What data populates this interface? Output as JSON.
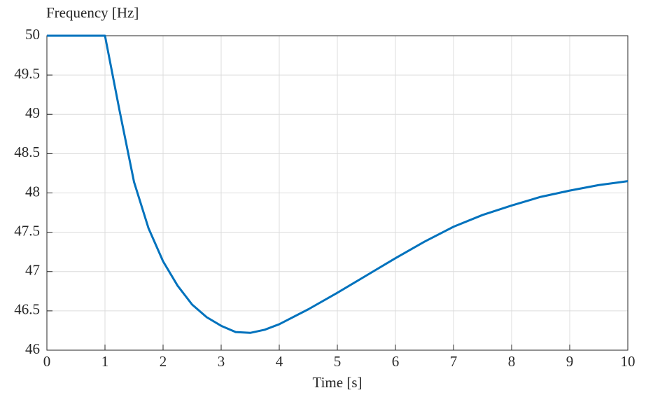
{
  "chart_data": {
    "type": "line",
    "ylabel": "Frequency [Hz]",
    "xlabel": "Time [s]",
    "x": [
      0,
      0.5,
      1,
      1.25,
      1.5,
      1.75,
      2,
      2.25,
      2.5,
      2.75,
      3,
      3.25,
      3.5,
      3.75,
      4,
      4.5,
      5,
      5.5,
      6,
      6.5,
      7,
      7.5,
      8,
      8.5,
      9,
      9.5,
      10
    ],
    "series": [
      {
        "name": "Frequency",
        "color": "#0072bd",
        "values": [
          50,
          50,
          50,
          49.05,
          48.14,
          47.55,
          47.13,
          46.82,
          46.58,
          46.42,
          46.31,
          46.23,
          46.22,
          46.26,
          46.33,
          46.52,
          46.73,
          46.95,
          47.17,
          47.38,
          47.57,
          47.72,
          47.84,
          47.95,
          48.03,
          48.1,
          48.15
        ]
      }
    ],
    "xlim": [
      0,
      10
    ],
    "ylim": [
      46,
      50
    ],
    "xticks": [
      0,
      1,
      2,
      3,
      4,
      5,
      6,
      7,
      8,
      9,
      10
    ],
    "yticks": [
      46,
      46.5,
      47,
      47.5,
      48,
      48.5,
      49,
      49.5,
      50
    ],
    "grid": true
  }
}
